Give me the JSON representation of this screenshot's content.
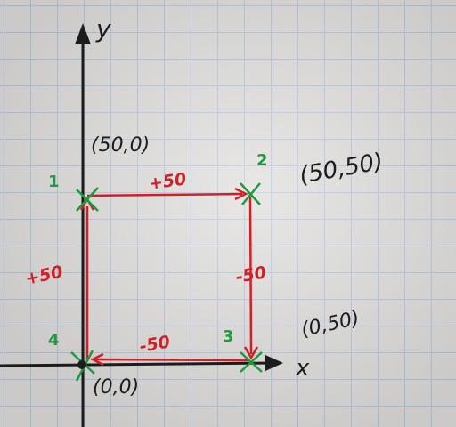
{
  "axes": {
    "x_label": "x",
    "y_label": "y"
  },
  "points": [
    {
      "number": "1",
      "coord": "(50,0)"
    },
    {
      "number": "2",
      "coord": "(50,50)"
    },
    {
      "number": "3",
      "coord": "(0,50)"
    },
    {
      "number": "4",
      "coord": "(0,0)"
    }
  ],
  "moves": {
    "top": "+50",
    "right": "-50",
    "bottom": "-50",
    "left": "+50"
  },
  "colors": {
    "paper": "#dcdbd9",
    "grid": "#b9c2cf",
    "axis_ink": "#1c1c1c",
    "path_ink": "#d21f26",
    "marker_ink": "#1d9a3c"
  }
}
